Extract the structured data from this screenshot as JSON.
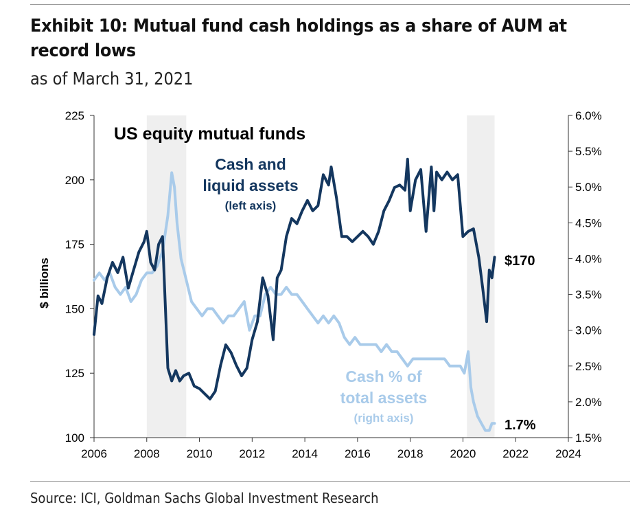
{
  "header": {
    "title": "Exhibit 10: Mutual fund cash holdings as a share of AUM at record lows",
    "subtitle": "as of March 31, 2021"
  },
  "footer": {
    "source": "Source: ICI, Goldman Sachs Global Investment Research"
  },
  "colors": {
    "cash_line": "#14375f",
    "pct_line": "#a9cbea",
    "recession_shade": "#efefef",
    "axis": "#333333"
  },
  "chart_data": {
    "type": "line",
    "title": "US equity mutual funds",
    "ylabel": "$ billions",
    "xlim": [
      2006,
      2024
    ],
    "ylim": [
      100,
      225
    ],
    "y2lim": [
      1.5,
      6.0
    ],
    "x_ticks": [
      "2006",
      "2008",
      "2010",
      "2012",
      "2014",
      "2016",
      "2018",
      "2020",
      "2022",
      "2024"
    ],
    "y_ticks": [
      "100",
      "125",
      "150",
      "175",
      "200",
      "225"
    ],
    "y2_ticks": [
      "1.5%",
      "2.0%",
      "2.5%",
      "3.0%",
      "3.5%",
      "4.0%",
      "4.5%",
      "5.0%",
      "5.5%",
      "6.0%"
    ],
    "shaded_periods": [
      [
        2008.0,
        2009.5
      ],
      [
        2020.15,
        2021.2
      ]
    ],
    "grid": false,
    "series": [
      {
        "name": "Cash and liquid assets",
        "name_line1": "Cash and",
        "name_line2": "liquid assets",
        "axis_note": "(left axis)",
        "axis": "left",
        "end_label": "$170",
        "x": [
          2006.0,
          2006.15,
          2006.3,
          2006.5,
          2006.7,
          2006.9,
          2007.1,
          2007.3,
          2007.5,
          2007.7,
          2007.9,
          2008.0,
          2008.15,
          2008.3,
          2008.45,
          2008.6,
          2008.8,
          2008.95,
          2009.1,
          2009.25,
          2009.4,
          2009.6,
          2009.8,
          2010.0,
          2010.2,
          2010.4,
          2010.6,
          2010.8,
          2011.0,
          2011.2,
          2011.4,
          2011.6,
          2011.8,
          2012.0,
          2012.2,
          2012.4,
          2012.6,
          2012.8,
          2012.95,
          2013.1,
          2013.3,
          2013.5,
          2013.7,
          2013.9,
          2014.1,
          2014.3,
          2014.5,
          2014.7,
          2014.9,
          2015.0,
          2015.2,
          2015.4,
          2015.6,
          2015.8,
          2016.0,
          2016.2,
          2016.4,
          2016.6,
          2016.8,
          2017.0,
          2017.2,
          2017.4,
          2017.6,
          2017.8,
          2017.9,
          2018.0,
          2018.2,
          2018.4,
          2018.6,
          2018.8,
          2018.9,
          2019.0,
          2019.2,
          2019.4,
          2019.6,
          2019.8,
          2020.0,
          2020.2,
          2020.4,
          2020.6,
          2020.75,
          2020.9,
          2021.0,
          2021.1,
          2021.2
        ],
        "values": [
          140,
          155,
          152,
          162,
          168,
          164,
          170,
          158,
          165,
          172,
          176,
          180,
          168,
          165,
          175,
          178,
          127,
          122,
          126,
          122,
          124,
          125,
          120,
          119,
          117,
          115,
          118,
          128,
          136,
          133,
          128,
          124,
          127,
          138,
          145,
          162,
          155,
          138,
          162,
          165,
          178,
          185,
          183,
          188,
          192,
          188,
          190,
          202,
          198,
          205,
          193,
          178,
          178,
          176,
          178,
          180,
          178,
          175,
          180,
          188,
          192,
          197,
          198,
          196,
          208,
          188,
          200,
          204,
          180,
          205,
          188,
          203,
          200,
          203,
          200,
          202,
          178,
          180,
          181,
          170,
          158,
          145,
          165,
          162,
          170
        ]
      },
      {
        "name": "Cash % of total assets",
        "name_line1": "Cash % of",
        "name_line2": "total assets",
        "axis_note": "(right axis)",
        "axis": "right",
        "end_label": "1.7%",
        "x": [
          2006.0,
          2006.2,
          2006.4,
          2006.6,
          2006.8,
          2007.0,
          2007.2,
          2007.4,
          2007.6,
          2007.8,
          2008.0,
          2008.2,
          2008.4,
          2008.6,
          2008.8,
          2008.95,
          2009.05,
          2009.15,
          2009.3,
          2009.5,
          2009.7,
          2009.9,
          2010.1,
          2010.3,
          2010.5,
          2010.7,
          2010.9,
          2011.1,
          2011.3,
          2011.5,
          2011.7,
          2011.9,
          2012.1,
          2012.3,
          2012.5,
          2012.7,
          2012.9,
          2013.1,
          2013.3,
          2013.5,
          2013.7,
          2013.9,
          2014.1,
          2014.3,
          2014.5,
          2014.7,
          2014.9,
          2015.1,
          2015.3,
          2015.5,
          2015.7,
          2015.9,
          2016.1,
          2016.3,
          2016.5,
          2016.7,
          2016.9,
          2017.1,
          2017.3,
          2017.5,
          2017.7,
          2017.9,
          2018.1,
          2018.3,
          2018.5,
          2018.7,
          2018.9,
          2019.1,
          2019.3,
          2019.5,
          2019.7,
          2019.9,
          2020.05,
          2020.2,
          2020.3,
          2020.4,
          2020.55,
          2020.7,
          2020.85,
          2021.0,
          2021.1,
          2021.2
        ],
        "values": [
          3.7,
          3.8,
          3.7,
          3.8,
          3.6,
          3.5,
          3.6,
          3.4,
          3.5,
          3.7,
          3.8,
          3.8,
          3.9,
          4.1,
          4.6,
          5.2,
          5.0,
          4.5,
          4.0,
          3.7,
          3.4,
          3.3,
          3.2,
          3.3,
          3.3,
          3.2,
          3.1,
          3.2,
          3.2,
          3.3,
          3.4,
          3.0,
          3.2,
          3.2,
          3.5,
          3.6,
          3.5,
          3.5,
          3.6,
          3.5,
          3.5,
          3.4,
          3.3,
          3.2,
          3.1,
          3.2,
          3.1,
          3.2,
          3.1,
          2.9,
          2.8,
          2.9,
          2.8,
          2.8,
          2.8,
          2.8,
          2.7,
          2.8,
          2.7,
          2.7,
          2.6,
          2.5,
          2.6,
          2.6,
          2.6,
          2.6,
          2.6,
          2.6,
          2.6,
          2.5,
          2.5,
          2.5,
          2.4,
          2.7,
          2.2,
          2.0,
          1.8,
          1.7,
          1.6,
          1.6,
          1.7,
          1.7
        ]
      }
    ]
  }
}
